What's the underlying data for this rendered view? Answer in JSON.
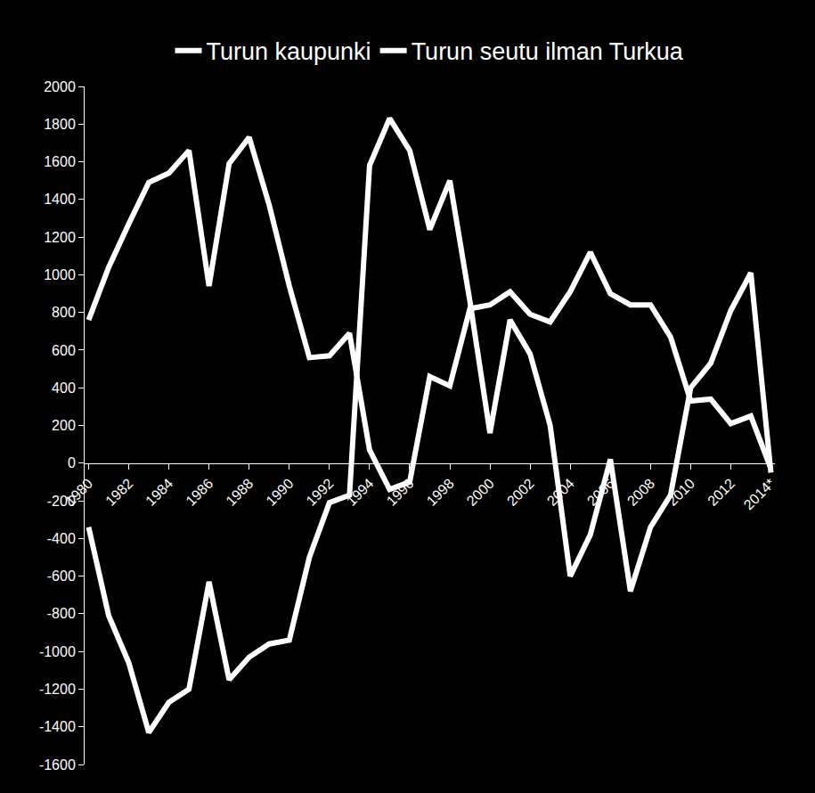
{
  "chart_data": {
    "type": "line",
    "categories": [
      "1980",
      null,
      "1982",
      null,
      "1984",
      null,
      "1986",
      null,
      "1988",
      null,
      "1990",
      null,
      "1992",
      null,
      "1994",
      null,
      "1996",
      null,
      "1998",
      null,
      "2000",
      null,
      "2002",
      null,
      "2004",
      null,
      "2006",
      null,
      "2008",
      null,
      "2010",
      null,
      "2012",
      null,
      "2014*"
    ],
    "series": [
      {
        "name": "Turun kaupunki",
        "color": "#ffffff",
        "values": [
          -340,
          -810,
          -1060,
          -1430,
          -1270,
          -1200,
          -630,
          -1150,
          -1030,
          -960,
          -940,
          -500,
          -210,
          -170,
          1580,
          1830,
          1660,
          1240,
          1500,
          860,
          160,
          760,
          580,
          200,
          -600,
          -380,
          20,
          -680,
          -340,
          -170,
          400,
          530,
          810,
          1010,
          -50
        ]
      },
      {
        "name": "Turun seutu ilman Turkua",
        "color": "#ffffff",
        "values": [
          760,
          1040,
          1270,
          1490,
          1540,
          1660,
          940,
          1590,
          1730,
          1370,
          940,
          560,
          570,
          690,
          70,
          -140,
          -100,
          460,
          410,
          820,
          840,
          910,
          790,
          750,
          910,
          1120,
          900,
          840,
          840,
          670,
          330,
          340,
          210,
          250,
          -30
        ]
      }
    ],
    "ylim": [
      -1600,
      2000
    ],
    "yticks": [
      -1600,
      -1400,
      -1200,
      -1000,
      -800,
      -600,
      -400,
      -200,
      0,
      200,
      400,
      600,
      800,
      1000,
      1200,
      1400,
      1600,
      1800,
      2000
    ],
    "grid": false,
    "legend": "top"
  }
}
